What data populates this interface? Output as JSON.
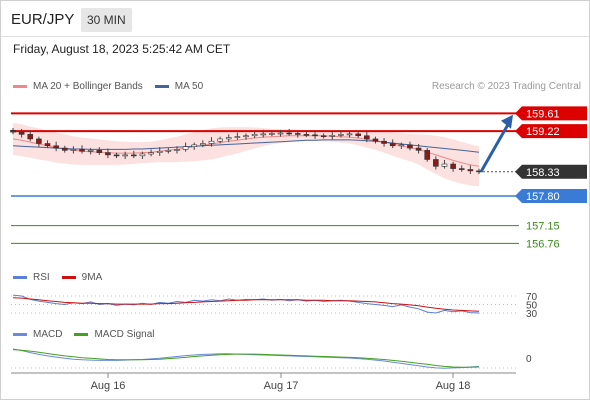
{
  "header": {
    "symbol": "EUR/JPY",
    "timeframe": "30 MIN",
    "timestamp": "Friday, August 18, 2023 5:25:42 AM CET"
  },
  "legend": {
    "ma20": "MA 20 + Bollinger Bands",
    "ma50": "MA 50",
    "rsi": "RSI",
    "rsi_ma": "9MA",
    "macd": "MACD",
    "macd_signal": "MACD Signal"
  },
  "credit": "Research © 2023 Trading Central",
  "colors": {
    "resistance": "#dd0000",
    "support": "#3a7bd5",
    "target": "#3a8a1a",
    "ma20": "#ee8888",
    "ma50": "#44649a",
    "band_fill": "#fbdcdc",
    "arrow": "#2a5fa8",
    "up_candle": "#ffffff",
    "down_candle": "#8b1a1a",
    "rsi": "#5b7ed8",
    "rsi_ma": "#cc1111",
    "macd": "#6a8ae0",
    "macd_signal": "#44a020"
  },
  "chart_data": {
    "type": "candlestick",
    "ylim": [
      156.55,
      159.75
    ],
    "x_ticks": [
      "Aug 16",
      "Aug 17",
      "Aug 18"
    ],
    "levels": [
      {
        "value": 159.61,
        "label": "159.61",
        "style": "resistance"
      },
      {
        "value": 159.22,
        "label": "159.22",
        "style": "resistance"
      },
      {
        "value": 158.33,
        "label": "158.33",
        "style": "last"
      },
      {
        "value": 157.8,
        "label": "157.80",
        "style": "support"
      },
      {
        "value": 157.15,
        "label": "157.15",
        "style": "target"
      },
      {
        "value": 156.76,
        "label": "156.76",
        "style": "target"
      }
    ],
    "arrow": {
      "from_value": 158.33,
      "to_value": 159.58
    },
    "close": [
      159.2,
      159.15,
      159.05,
      158.95,
      158.9,
      158.85,
      158.8,
      158.82,
      158.78,
      158.8,
      158.75,
      158.7,
      158.68,
      158.7,
      158.68,
      158.72,
      158.75,
      158.78,
      158.8,
      158.82,
      158.88,
      158.92,
      158.95,
      159.0,
      159.05,
      159.08,
      159.1,
      159.12,
      159.15,
      159.16,
      159.17,
      159.18,
      159.17,
      159.15,
      159.14,
      159.12,
      159.11,
      159.13,
      159.15,
      159.16,
      159.12,
      159.05,
      159.0,
      158.95,
      158.9,
      158.92,
      158.85,
      158.8,
      158.6,
      158.45,
      158.5,
      158.4,
      158.38,
      158.35,
      158.33
    ],
    "ma20": [
      159.05,
      159.02,
      158.98,
      158.94,
      158.9,
      158.86,
      158.83,
      158.8,
      158.78,
      158.77,
      158.76,
      158.75,
      158.74,
      158.74,
      158.74,
      158.75,
      158.76,
      158.78,
      158.8,
      158.82,
      158.85,
      158.88,
      158.91,
      158.94,
      158.97,
      159.0,
      159.02,
      159.05,
      159.07,
      159.09,
      159.1,
      159.11,
      159.12,
      159.12,
      159.12,
      159.12,
      159.12,
      159.11,
      159.1,
      159.09,
      159.07,
      159.04,
      159.01,
      158.98,
      158.94,
      158.9,
      158.86,
      158.82,
      158.76,
      158.7,
      158.64,
      158.58,
      158.53,
      158.48,
      158.45
    ],
    "ma50": [
      158.9,
      158.89,
      158.88,
      158.87,
      158.86,
      158.85,
      158.84,
      158.83,
      158.83,
      158.82,
      158.82,
      158.82,
      158.82,
      158.82,
      158.83,
      158.83,
      158.84,
      158.85,
      158.86,
      158.87,
      158.88,
      158.89,
      158.9,
      158.91,
      158.92,
      158.93,
      158.94,
      158.95,
      158.96,
      158.97,
      158.98,
      158.99,
      159.0,
      159.01,
      159.02,
      159.02,
      159.03,
      159.03,
      159.03,
      159.03,
      159.02,
      159.01,
      159.0,
      158.98,
      158.96,
      158.94,
      158.92,
      158.9,
      158.88,
      158.86,
      158.84,
      158.82,
      158.8,
      158.78,
      158.76
    ],
    "band_width": [
      0.35,
      0.35,
      0.34,
      0.34,
      0.33,
      0.33,
      0.32,
      0.31,
      0.3,
      0.29,
      0.28,
      0.27,
      0.26,
      0.25,
      0.24,
      0.23,
      0.23,
      0.24,
      0.26,
      0.28,
      0.3,
      0.32,
      0.33,
      0.34,
      0.33,
      0.31,
      0.29,
      0.26,
      0.23,
      0.2,
      0.17,
      0.15,
      0.14,
      0.13,
      0.12,
      0.12,
      0.12,
      0.12,
      0.13,
      0.14,
      0.16,
      0.18,
      0.2,
      0.23,
      0.26,
      0.28,
      0.3,
      0.33,
      0.38,
      0.42,
      0.45,
      0.46,
      0.46,
      0.45,
      0.44
    ],
    "rsi": {
      "levels": [
        70,
        50,
        30
      ],
      "ylim": [
        0,
        100
      ],
      "values": [
        72,
        70,
        62,
        58,
        55,
        52,
        50,
        54,
        52,
        56,
        50,
        52,
        48,
        51,
        49,
        53,
        50,
        55,
        53,
        57,
        55,
        60,
        58,
        61,
        59,
        63,
        60,
        62,
        61,
        63,
        60,
        62,
        59,
        61,
        58,
        60,
        57,
        59,
        60,
        58,
        55,
        52,
        50,
        48,
        45,
        49,
        44,
        40,
        32,
        30,
        36,
        33,
        35,
        31,
        30
      ],
      "ma": [
        66,
        65,
        63,
        61,
        59,
        57,
        55,
        54,
        53,
        53,
        52,
        52,
        51,
        51,
        51,
        51,
        51,
        52,
        52,
        53,
        54,
        55,
        56,
        57,
        58,
        59,
        60,
        60,
        61,
        61,
        61,
        61,
        61,
        61,
        60,
        60,
        60,
        59,
        59,
        59,
        58,
        57,
        56,
        54,
        52,
        51,
        49,
        47,
        44,
        41,
        39,
        37,
        36,
        35,
        34
      ]
    },
    "macd": {
      "zero_label": "0",
      "macd": [
        0.3,
        0.25,
        0.18,
        0.12,
        0.07,
        0.03,
        -0.01,
        -0.04,
        -0.06,
        -0.07,
        -0.08,
        -0.08,
        -0.08,
        -0.07,
        -0.06,
        -0.05,
        -0.03,
        -0.01,
        0.02,
        0.05,
        0.08,
        0.1,
        0.12,
        0.13,
        0.14,
        0.14,
        0.13,
        0.12,
        0.11,
        0.1,
        0.09,
        0.08,
        0.07,
        0.06,
        0.05,
        0.04,
        0.03,
        0.02,
        0.01,
        0.0,
        -0.02,
        -0.04,
        -0.07,
        -0.1,
        -0.14,
        -0.18,
        -0.22,
        -0.26,
        -0.3,
        -0.33,
        -0.34,
        -0.33,
        -0.32,
        -0.3,
        -0.28
      ],
      "signal": [
        0.28,
        0.26,
        0.23,
        0.19,
        0.15,
        0.11,
        0.07,
        0.04,
        0.01,
        -0.01,
        -0.03,
        -0.05,
        -0.06,
        -0.06,
        -0.06,
        -0.06,
        -0.05,
        -0.04,
        -0.02,
        0.0,
        0.02,
        0.05,
        0.07,
        0.09,
        0.11,
        0.12,
        0.13,
        0.13,
        0.13,
        0.12,
        0.11,
        0.1,
        0.09,
        0.08,
        0.07,
        0.06,
        0.05,
        0.04,
        0.03,
        0.02,
        0.01,
        -0.01,
        -0.03,
        -0.05,
        -0.08,
        -0.11,
        -0.14,
        -0.18,
        -0.21,
        -0.25,
        -0.28,
        -0.3,
        -0.31,
        -0.31,
        -0.3
      ]
    }
  }
}
